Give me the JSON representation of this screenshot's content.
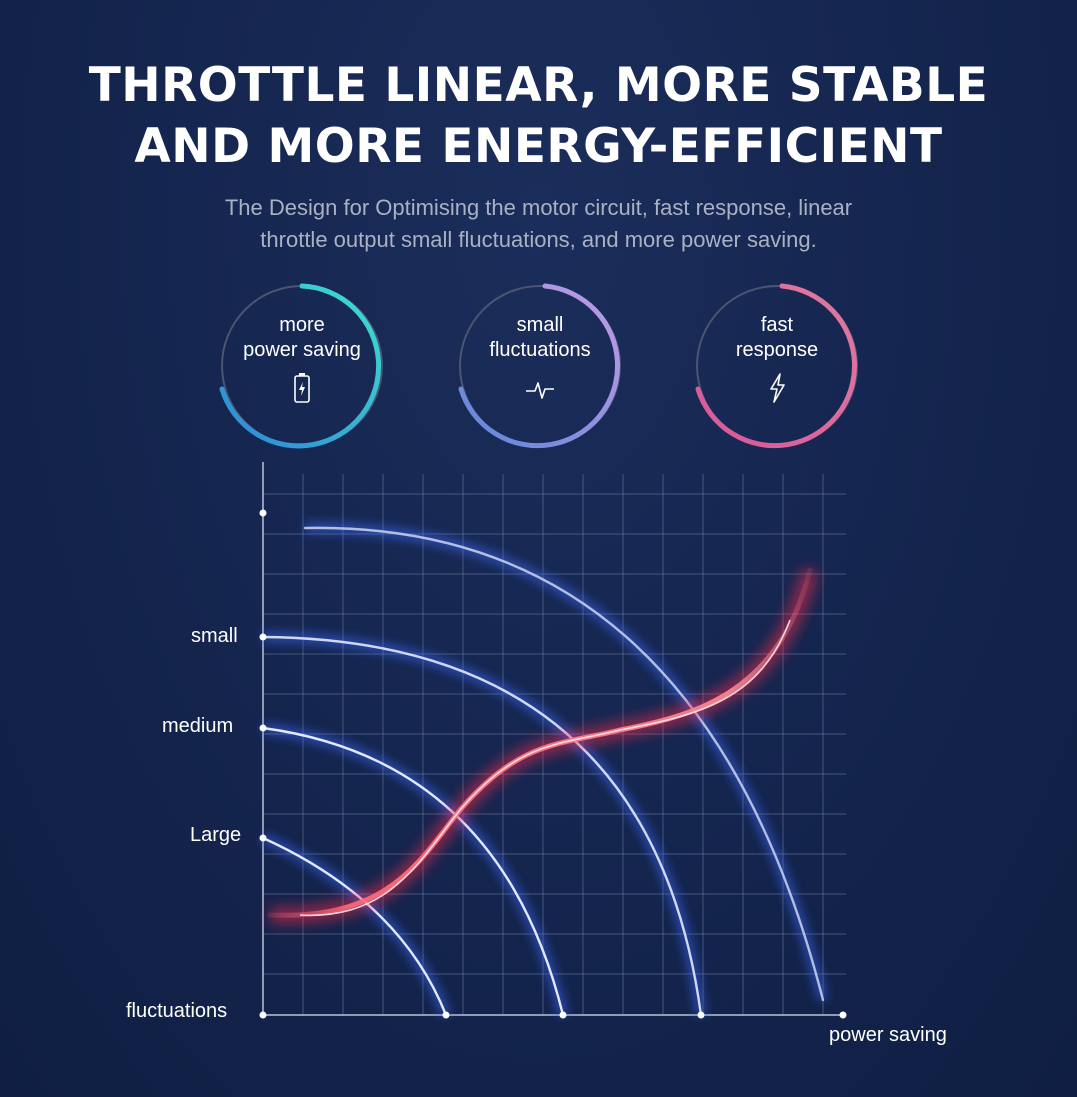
{
  "header": {
    "title_line1": "THROTTLE LINEAR, MORE STABLE",
    "title_line2": "AND MORE ENERGY-EFFICIENT",
    "subtitle_line1": "The Design for Optimising the motor circuit, fast response, linear",
    "subtitle_line2": "throttle output small fluctuations, and more power saving."
  },
  "badges": [
    {
      "line1": "more",
      "line2": "power saving",
      "icon": "battery-icon",
      "colors": [
        "#3fe0d0",
        "#2f86d6"
      ]
    },
    {
      "line1": "small",
      "line2": "fluctuations",
      "icon": "pulse-icon",
      "colors": [
        "#c59be6",
        "#5d86d8"
      ]
    },
    {
      "line1": "fast",
      "line2": "response",
      "icon": "lightning-icon",
      "colors": [
        "#e07aa0",
        "#d9579a"
      ]
    }
  ],
  "chart_labels": {
    "y_small": "small",
    "y_medium": "medium",
    "y_large": "Large",
    "y_axis": "fluctuations",
    "x_axis": "power saving"
  },
  "colors": {
    "background": "#152650",
    "grid": "#6f7fa3",
    "curve": "#dbe3f7",
    "curve_glow": "#3e6bff",
    "trend": "#ff6b7a",
    "trend_glow": "#ff2a4a"
  }
}
